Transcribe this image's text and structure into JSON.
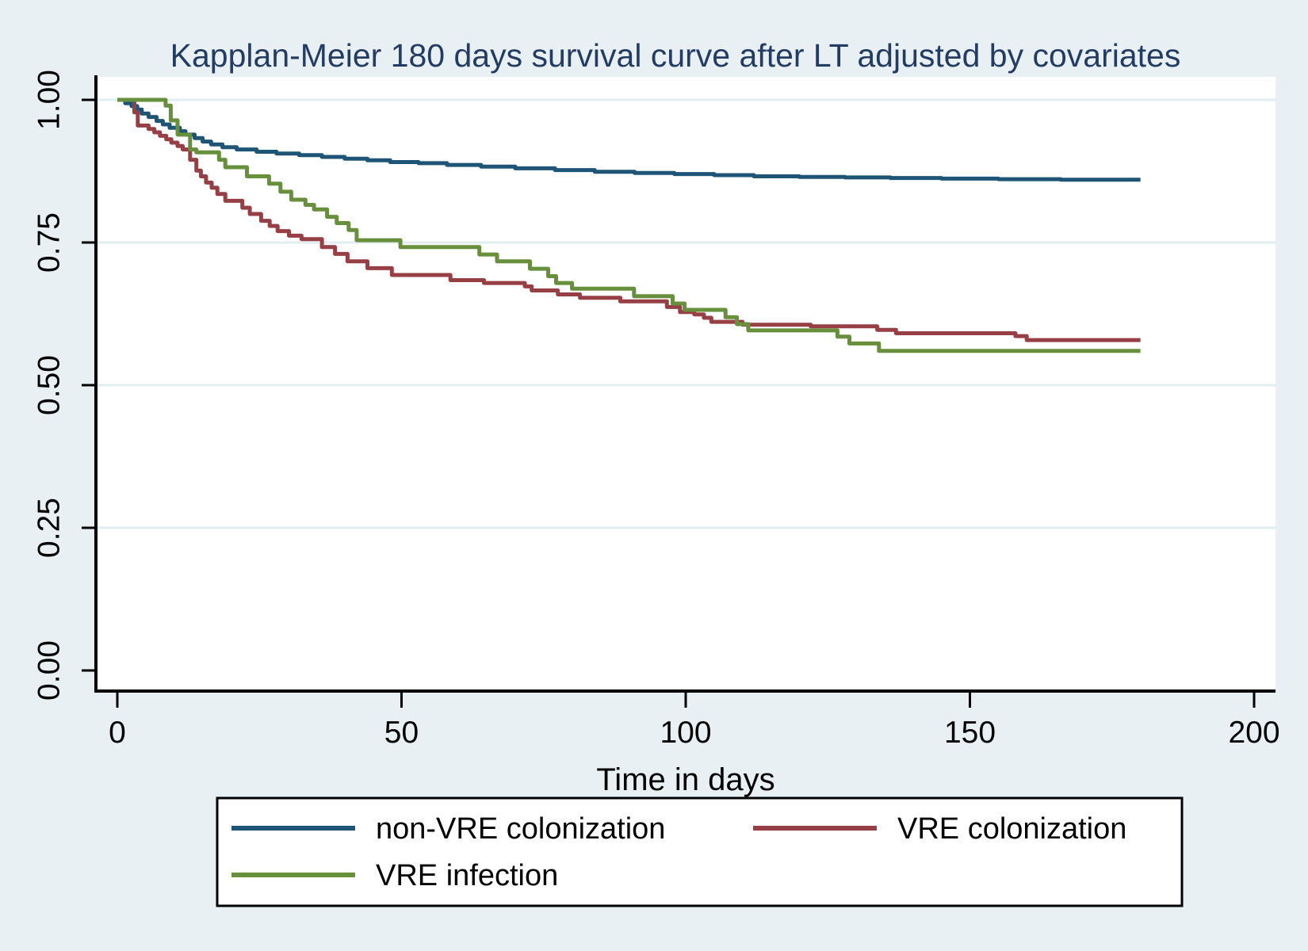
{
  "chart_data": {
    "type": "line",
    "subtype": "kaplan-meier-step-survival",
    "title": "Kapplan-Meier 180 days survival curve after LT adjusted by covariates",
    "xlabel": "Time in days",
    "ylabel": "",
    "xlim": [
      0,
      200
    ],
    "ylim": [
      0.0,
      1.0
    ],
    "x_ticks": [
      0,
      50,
      100,
      150,
      200
    ],
    "y_ticks": [
      {
        "value": 1.0,
        "label": "1.00"
      },
      {
        "value": 0.75,
        "label": "0.75"
      },
      {
        "value": 0.5,
        "label": "0.50"
      },
      {
        "value": 0.25,
        "label": "0.25"
      },
      {
        "value": 0.0,
        "label": "0.00"
      }
    ],
    "grid": "horizontal gridlines at 0.25, 0.50, 0.75, 1.00",
    "legend_position": "bottom",
    "curve_end_day": 180,
    "series": [
      {
        "name": "non-VRE colonization",
        "color": "#1e5577",
        "points": [
          [
            0,
            1.0
          ],
          [
            1.4,
            0.994
          ],
          [
            2.5,
            0.989
          ],
          [
            3.5,
            0.983
          ],
          [
            4.3,
            0.976
          ],
          [
            5.5,
            0.97
          ],
          [
            6.9,
            0.963
          ],
          [
            8,
            0.957
          ],
          [
            9.2,
            0.951
          ],
          [
            11,
            0.945
          ],
          [
            12,
            0.939
          ],
          [
            13.6,
            0.933
          ],
          [
            15,
            0.927
          ],
          [
            16.5,
            0.922
          ],
          [
            18.5,
            0.917
          ],
          [
            21,
            0.913
          ],
          [
            24.5,
            0.909
          ],
          [
            28,
            0.906
          ],
          [
            32,
            0.903
          ],
          [
            36,
            0.9
          ],
          [
            40,
            0.897
          ],
          [
            44,
            0.894
          ],
          [
            48,
            0.891
          ],
          [
            53,
            0.889
          ],
          [
            58,
            0.886
          ],
          [
            64,
            0.883
          ],
          [
            70,
            0.88
          ],
          [
            77,
            0.877
          ],
          [
            84,
            0.874
          ],
          [
            91,
            0.872
          ],
          [
            98,
            0.87
          ],
          [
            105,
            0.868
          ],
          [
            112,
            0.866
          ],
          [
            120,
            0.865
          ],
          [
            128,
            0.864
          ],
          [
            136,
            0.863
          ],
          [
            145,
            0.862
          ],
          [
            155,
            0.861
          ],
          [
            166,
            0.86
          ],
          [
            180,
            0.86
          ]
        ]
      },
      {
        "name": "VRE colonization",
        "color": "#963f44",
        "points": [
          [
            0,
            1.0
          ],
          [
            3,
            0.978
          ],
          [
            3.6,
            0.955
          ],
          [
            5.5,
            0.949
          ],
          [
            6.5,
            0.943
          ],
          [
            7.5,
            0.937
          ],
          [
            8.6,
            0.931
          ],
          [
            9.5,
            0.925
          ],
          [
            10.6,
            0.919
          ],
          [
            11.5,
            0.913
          ],
          [
            12.8,
            0.895
          ],
          [
            13.9,
            0.876
          ],
          [
            14.7,
            0.866
          ],
          [
            15.6,
            0.855
          ],
          [
            16.6,
            0.846
          ],
          [
            17.6,
            0.835
          ],
          [
            19,
            0.823
          ],
          [
            22,
            0.811
          ],
          [
            23.3,
            0.8
          ],
          [
            25.3,
            0.788
          ],
          [
            26.8,
            0.779
          ],
          [
            28.2,
            0.77
          ],
          [
            30.2,
            0.762
          ],
          [
            32.4,
            0.756
          ],
          [
            36,
            0.742
          ],
          [
            38.3,
            0.73
          ],
          [
            40.5,
            0.717
          ],
          [
            44,
            0.705
          ],
          [
            48.3,
            0.693
          ],
          [
            58.6,
            0.684
          ],
          [
            64.5,
            0.679
          ],
          [
            71.7,
            0.673
          ],
          [
            72.9,
            0.666
          ],
          [
            77.5,
            0.659
          ],
          [
            81.4,
            0.653
          ],
          [
            88.5,
            0.647
          ],
          [
            96.7,
            0.637
          ],
          [
            99,
            0.628
          ],
          [
            101.5,
            0.624
          ],
          [
            103.2,
            0.618
          ],
          [
            104.5,
            0.611
          ],
          [
            110,
            0.606
          ],
          [
            122,
            0.603
          ],
          [
            133.7,
            0.597
          ],
          [
            137,
            0.591
          ],
          [
            158,
            0.586
          ],
          [
            160,
            0.579
          ],
          [
            180,
            0.579
          ]
        ]
      },
      {
        "name": "VRE infection",
        "color": "#678f3c",
        "points": [
          [
            0,
            1.0
          ],
          [
            8.5,
            0.99
          ],
          [
            9.4,
            0.964
          ],
          [
            10.6,
            0.939
          ],
          [
            12.8,
            0.913
          ],
          [
            13.9,
            0.908
          ],
          [
            17.9,
            0.895
          ],
          [
            19,
            0.882
          ],
          [
            22.8,
            0.866
          ],
          [
            26.7,
            0.853
          ],
          [
            28.7,
            0.839
          ],
          [
            30.6,
            0.825
          ],
          [
            33.1,
            0.816
          ],
          [
            34.6,
            0.808
          ],
          [
            36.9,
            0.795
          ],
          [
            38.6,
            0.784
          ],
          [
            40.7,
            0.772
          ],
          [
            42.1,
            0.754
          ],
          [
            49.8,
            0.742
          ],
          [
            63.7,
            0.729
          ],
          [
            66.8,
            0.717
          ],
          [
            72.6,
            0.704
          ],
          [
            75.8,
            0.691
          ],
          [
            77.2,
            0.679
          ],
          [
            80,
            0.669
          ],
          [
            90.9,
            0.656
          ],
          [
            97.7,
            0.643
          ],
          [
            99.8,
            0.632
          ],
          [
            107,
            0.619
          ],
          [
            109,
            0.607
          ],
          [
            111,
            0.596
          ],
          [
            126.7,
            0.585
          ],
          [
            128.8,
            0.573
          ],
          [
            134,
            0.56
          ],
          [
            180,
            0.56
          ]
        ]
      }
    ]
  },
  "colors": {
    "background": "#e9f0f3",
    "plot_background": "#ffffff",
    "gridline": "#e1edf1",
    "axis": "#000000",
    "title": "#233c63",
    "legend_border": "#000000",
    "legend_background": "#ffffff"
  }
}
